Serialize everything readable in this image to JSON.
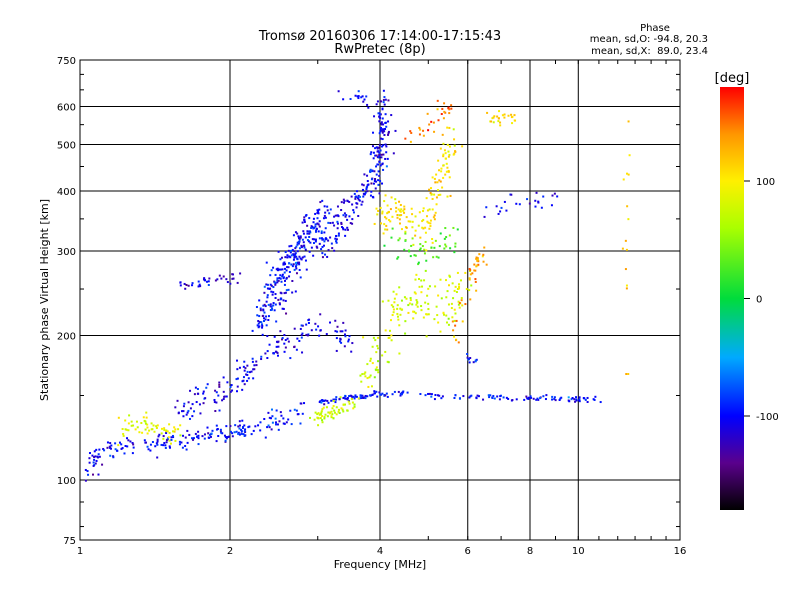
{
  "chart_data": {
    "type": "scatter",
    "title": "Tromsø 20160306 17:14:00-17:15:43",
    "subtitle": "RwPretec (8p)",
    "xlabel": "Frequency [MHz]",
    "ylabel": "Stationary phase Virtual Height [km]",
    "x_scale": "log",
    "y_scale": "log",
    "xlim": [
      1,
      16
    ],
    "ylim": [
      75,
      750
    ],
    "x_ticks": [
      1,
      2,
      4,
      6,
      8,
      10,
      16
    ],
    "x_tick_labels": [
      "1",
      "2",
      "4",
      "6",
      "8",
      "10",
      "16"
    ],
    "y_ticks": [
      75,
      100,
      200,
      300,
      400,
      500,
      600,
      750
    ],
    "y_tick_labels": [
      "75",
      "100",
      "200",
      "300",
      "400",
      "500",
      "600",
      "750"
    ],
    "grid": true,
    "phase_stats": {
      "title": "Phase",
      "line_o": "mean, sd,O: -94.8, 20.3",
      "line_x": "mean, sd,X:  89.0, 23.4"
    },
    "colorbar": {
      "label": "[deg]",
      "range": [
        -180,
        180
      ],
      "ticks": [
        100,
        0,
        -100
      ],
      "tick_labels": [
        "100",
        "0",
        "-100"
      ]
    },
    "traces": [
      {
        "path": [
          [
            1.0,
            111
          ],
          [
            1.2,
            117
          ],
          [
            1.45,
            120
          ],
          [
            1.7,
            122
          ],
          [
            1.95,
            125
          ],
          [
            2.2,
            128
          ],
          [
            2.5,
            133
          ],
          [
            2.8,
            140
          ]
        ],
        "phase": -100,
        "spread": 0.04,
        "n": 200
      },
      {
        "path": [
          [
            1.2,
            125
          ],
          [
            1.32,
            133
          ],
          [
            1.45,
            127
          ],
          [
            1.6,
            124
          ]
        ],
        "phase": 85,
        "spread": 0.05,
        "n": 60
      },
      {
        "path": [
          [
            1.03,
            100
          ],
          [
            1.06,
            106
          ],
          [
            1.09,
            111
          ]
        ],
        "phase": -110,
        "spread": 0.03,
        "n": 15
      },
      {
        "path": [
          [
            1.55,
            140
          ],
          [
            1.8,
            148
          ],
          [
            2.05,
            160
          ],
          [
            2.3,
            175
          ],
          [
            2.6,
            195
          ],
          [
            3.0,
            210
          ],
          [
            3.5,
            195
          ]
        ],
        "phase": -105,
        "spread": 0.06,
        "n": 170
      },
      {
        "path": [
          [
            2.3,
            210
          ],
          [
            2.45,
            245
          ],
          [
            2.6,
            275
          ],
          [
            2.75,
            300
          ],
          [
            2.9,
            330
          ],
          [
            3.1,
            360
          ]
        ],
        "phase": -100,
        "spread": 0.08,
        "n": 280
      },
      {
        "path": [
          [
            3.0,
            300
          ],
          [
            3.3,
            340
          ],
          [
            3.6,
            380
          ],
          [
            3.9,
            420
          ],
          [
            4.0,
            470
          ],
          [
            4.05,
            540
          ],
          [
            4.1,
            620
          ]
        ],
        "phase": -105,
        "spread": 0.06,
        "n": 230
      },
      {
        "path": [
          [
            1.55,
            252
          ],
          [
            1.75,
            258
          ],
          [
            1.95,
            262
          ],
          [
            2.15,
            266
          ]
        ],
        "phase": -115,
        "spread": 0.02,
        "n": 35
      },
      {
        "path": [
          [
            3.0,
            145
          ],
          [
            3.4,
            148
          ],
          [
            3.8,
            150
          ],
          [
            4.3,
            152
          ],
          [
            5.0,
            150
          ],
          [
            6.0,
            149
          ],
          [
            7.5,
            148
          ],
          [
            9.0,
            148
          ],
          [
            11.0,
            147
          ]
        ],
        "phase": -95,
        "spread": 0.012,
        "n": 170
      },
      {
        "path": [
          [
            2.9,
            135
          ],
          [
            3.2,
            140
          ],
          [
            3.6,
            145
          ]
        ],
        "phase": 75,
        "spread": 0.04,
        "n": 60
      },
      {
        "path": [
          [
            3.7,
            160
          ],
          [
            4.2,
            210
          ],
          [
            4.8,
            245
          ],
          [
            5.4,
            220
          ],
          [
            5.9,
            260
          ]
        ],
        "phase": 80,
        "spread": 0.1,
        "n": 160
      },
      {
        "path": [
          [
            4.0,
            350
          ],
          [
            4.4,
            360
          ],
          [
            4.9,
            330
          ],
          [
            5.3,
            420
          ],
          [
            5.6,
            520
          ]
        ],
        "phase": 105,
        "spread": 0.07,
        "n": 150
      },
      {
        "path": [
          [
            4.3,
            310
          ],
          [
            5.0,
            300
          ],
          [
            5.7,
            320
          ]
        ],
        "phase": 30,
        "spread": 0.08,
        "n": 50
      },
      {
        "path": [
          [
            4.6,
            520
          ],
          [
            5.1,
            560
          ],
          [
            5.6,
            600
          ]
        ],
        "phase": 150,
        "spread": 0.05,
        "n": 30
      },
      {
        "path": [
          [
            5.6,
            190
          ],
          [
            5.9,
            240
          ],
          [
            6.2,
            280
          ],
          [
            6.5,
            300
          ]
        ],
        "phase": 135,
        "spread": 0.05,
        "n": 40
      },
      {
        "path": [
          [
            6.6,
            560
          ],
          [
            7.1,
            570
          ],
          [
            7.6,
            575
          ]
        ],
        "phase": 110,
        "spread": 0.04,
        "n": 25
      },
      {
        "path": [
          [
            6.5,
            360
          ],
          [
            7.2,
            375
          ],
          [
            8.3,
            385
          ],
          [
            9.1,
            380
          ]
        ],
        "phase": -100,
        "spread": 0.04,
        "n": 25
      },
      {
        "path": [
          [
            12.5,
            140
          ],
          [
            12.5,
            250
          ],
          [
            12.5,
            400
          ],
          [
            12.5,
            600
          ]
        ],
        "phase": 120,
        "spread": 0.03,
        "n": 15
      },
      {
        "path": [
          [
            3.3,
            640
          ],
          [
            3.6,
            630
          ],
          [
            3.8,
            620
          ]
        ],
        "phase": -100,
        "spread": 0.03,
        "n": 15
      },
      {
        "path": [
          [
            6.0,
            180
          ],
          [
            6.3,
            178
          ]
        ],
        "phase": -100,
        "spread": 0.02,
        "n": 10
      }
    ]
  }
}
